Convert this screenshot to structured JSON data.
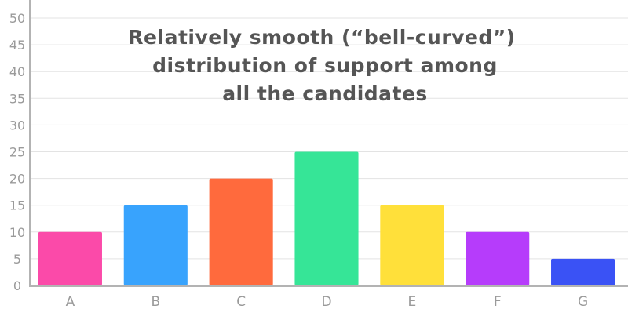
{
  "chart_data": {
    "type": "bar",
    "title_lines": [
      "Relatively smooth (“bell-curved”)",
      "distribution of support among",
      "all the candidates"
    ],
    "categories": [
      "A",
      "B",
      "C",
      "D",
      "E",
      "F",
      "G"
    ],
    "values": [
      10,
      15,
      20,
      25,
      15,
      10,
      5
    ],
    "colors": [
      "#fb4aa9",
      "#38a3fd",
      "#ff6a3d",
      "#36e597",
      "#ffe03a",
      "#b63cfb",
      "#3a52f5"
    ],
    "y_ticks": [
      0,
      5,
      10,
      15,
      20,
      25,
      30,
      35,
      40,
      45,
      50
    ],
    "ylim": [
      0,
      50
    ],
    "grid": true,
    "legend": "none"
  }
}
